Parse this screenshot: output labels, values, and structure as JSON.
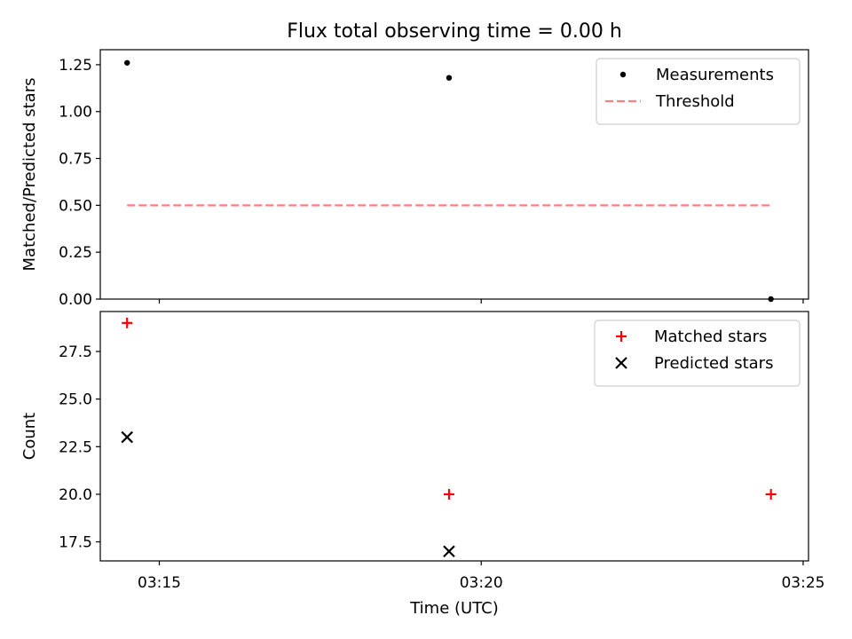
{
  "title": "Flux total observing time = 0.00 h",
  "chart_data": [
    {
      "type": "scatter",
      "ylabel": "Matched/Predicted stars",
      "ylim": [
        0.0,
        1.33
      ],
      "yticks": [
        0.0,
        0.25,
        0.5,
        0.75,
        1.0,
        1.25
      ],
      "ytick_labels": [
        "0.00",
        "0.25",
        "0.50",
        "0.75",
        "1.00",
        "1.25"
      ],
      "xlim": [
        "03:14:05",
        "03:25:05"
      ],
      "xticks": [
        "03:15:00",
        "03:20:00",
        "03:25:00"
      ],
      "legend_position": "top-right",
      "series": [
        {
          "name": "Measurements",
          "marker": "dot",
          "color": "#000000",
          "points": [
            {
              "x": "03:14:30",
              "y": 1.26
            },
            {
              "x": "03:19:30",
              "y": 1.18
            },
            {
              "x": "03:24:30",
              "y": 0.0
            }
          ]
        },
        {
          "name": "Threshold",
          "style": "dashed-line",
          "color": "#ff7f7f",
          "points": [
            {
              "x": "03:14:30",
              "y": 0.5
            },
            {
              "x": "03:24:30",
              "y": 0.5
            }
          ]
        }
      ]
    },
    {
      "type": "scatter",
      "xlabel": "Time (UTC)",
      "ylabel": "Count",
      "ylim": [
        16.5,
        29.6
      ],
      "yticks": [
        17.5,
        20.0,
        22.5,
        25.0,
        27.5
      ],
      "ytick_labels": [
        "17.5",
        "20.0",
        "22.5",
        "25.0",
        "27.5"
      ],
      "xlim": [
        "03:14:05",
        "03:25:05"
      ],
      "xticks": [
        "03:15:00",
        "03:20:00",
        "03:25:00"
      ],
      "xtick_labels": [
        "03:15",
        "03:20",
        "03:25"
      ],
      "legend_position": "top-right",
      "series": [
        {
          "name": "Matched stars",
          "marker": "plus",
          "color": "#ff0000",
          "points": [
            {
              "x": "03:14:30",
              "y": 29
            },
            {
              "x": "03:19:30",
              "y": 20
            },
            {
              "x": "03:24:30",
              "y": 20
            }
          ]
        },
        {
          "name": "Predicted stars",
          "marker": "x",
          "color": "#000000",
          "points": [
            {
              "x": "03:14:30",
              "y": 23
            },
            {
              "x": "03:19:30",
              "y": 17
            }
          ]
        }
      ]
    }
  ]
}
